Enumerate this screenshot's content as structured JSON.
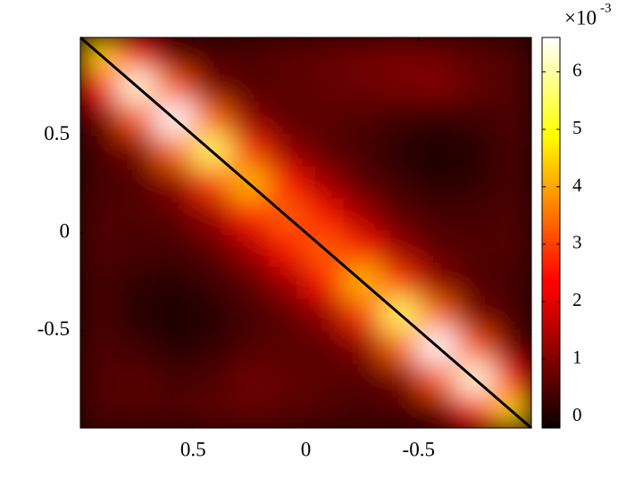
{
  "chart_data": {
    "type": "heatmap",
    "xlim": [
      1,
      -1
    ],
    "ylim": [
      -1,
      1
    ],
    "xticks": [
      0.5,
      0,
      -0.5
    ],
    "yticks": [
      -0.5,
      0,
      0.5
    ],
    "z": [
      [
        4.5,
        2.5,
        0.7,
        0.4,
        0.5,
        0.6,
        0.7,
        0.8,
        0.9,
        0.8,
        0.6,
        0.5
      ],
      [
        2.5,
        6.4,
        3.2,
        0.9,
        0.5,
        0.6,
        0.7,
        0.8,
        0.9,
        1.0,
        0.7,
        0.5
      ],
      [
        0.7,
        3.2,
        6.6,
        3.4,
        1.1,
        0.6,
        0.6,
        0.5,
        0.3,
        0.2,
        0.3,
        0.5
      ],
      [
        0.4,
        0.9,
        3.4,
        5.6,
        2.9,
        1.2,
        0.6,
        0.4,
        0.1,
        0.0,
        0.1,
        0.4
      ],
      [
        0.4,
        0.5,
        1.1,
        2.9,
        4.2,
        2.6,
        1.3,
        0.6,
        0.3,
        0.1,
        0.2,
        0.4
      ],
      [
        0.5,
        0.5,
        0.6,
        1.2,
        2.6,
        3.3,
        2.5,
        1.3,
        0.6,
        0.4,
        0.4,
        0.5
      ],
      [
        0.5,
        0.4,
        0.4,
        0.6,
        1.3,
        2.5,
        3.3,
        2.6,
        1.2,
        0.6,
        0.5,
        0.5
      ],
      [
        0.4,
        0.2,
        0.1,
        0.3,
        0.6,
        1.3,
        2.6,
        4.2,
        2.9,
        1.1,
        0.5,
        0.4
      ],
      [
        0.4,
        0.1,
        0.0,
        0.1,
        0.4,
        0.6,
        1.2,
        2.9,
        5.6,
        3.4,
        0.9,
        0.4
      ],
      [
        0.5,
        0.3,
        0.1,
        0.2,
        0.5,
        0.6,
        0.6,
        1.1,
        3.4,
        6.6,
        3.2,
        0.7
      ],
      [
        0.5,
        0.6,
        0.4,
        0.5,
        0.8,
        0.7,
        0.6,
        0.5,
        0.9,
        3.2,
        6.4,
        2.5
      ],
      [
        0.5,
        0.5,
        0.5,
        0.6,
        0.7,
        0.6,
        0.5,
        0.4,
        0.4,
        0.7,
        2.5,
        4.5
      ]
    ],
    "colormap": "hot",
    "clim": [
      -0.2,
      6.6
    ],
    "colorbar_ticks": [
      0,
      1,
      2,
      3,
      4,
      5,
      6
    ],
    "colorbar_scale": "×10",
    "colorbar_exponent": "-3",
    "diagonal": {
      "x": [
        1,
        -1
      ],
      "y": [
        1,
        -1
      ],
      "color": "#000000"
    }
  }
}
